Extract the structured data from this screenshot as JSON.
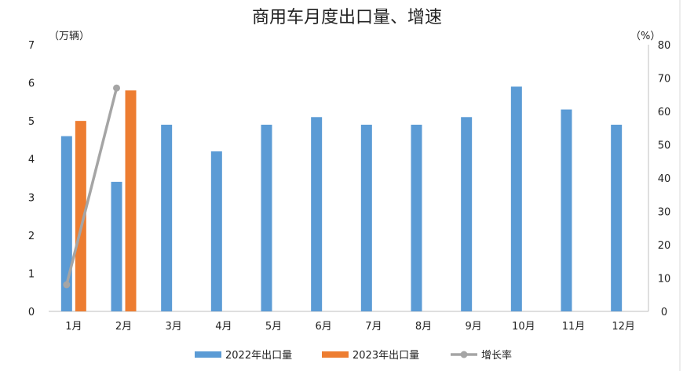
{
  "chart_data": {
    "type": "bar",
    "title": "商用车月度出口量、增速",
    "categories": [
      "1月",
      "2月",
      "3月",
      "4月",
      "5月",
      "6月",
      "7月",
      "8月",
      "9月",
      "10月",
      "11月",
      "12月"
    ],
    "y_left": {
      "unit_label": "（万辆）",
      "range": [
        0,
        7
      ],
      "ticks": [
        "0",
        "1",
        "2",
        "3",
        "4",
        "5",
        "6",
        "7"
      ]
    },
    "y_right": {
      "unit_label": "（%）",
      "range": [
        0,
        80
      ],
      "ticks": [
        "0",
        "10",
        "20",
        "30",
        "40",
        "50",
        "60",
        "70",
        "80"
      ]
    },
    "series": [
      {
        "name": "2022年出口量",
        "kind": "bar",
        "axis": "left",
        "color": "#5B9BD5",
        "values": [
          4.6,
          3.4,
          4.9,
          4.2,
          4.9,
          5.1,
          4.9,
          4.9,
          5.1,
          5.9,
          5.3,
          4.9
        ]
      },
      {
        "name": "2023年出口量",
        "kind": "bar",
        "axis": "left",
        "color": "#ED7D31",
        "values": [
          5.0,
          5.8,
          null,
          null,
          null,
          null,
          null,
          null,
          null,
          null,
          null,
          null
        ]
      },
      {
        "name": "增长率",
        "kind": "line",
        "axis": "right",
        "color": "#A5A5A5",
        "values": [
          8,
          67,
          null,
          null,
          null,
          null,
          null,
          null,
          null,
          null,
          null,
          null
        ]
      }
    ],
    "grid": false,
    "legend_position": "bottom"
  }
}
